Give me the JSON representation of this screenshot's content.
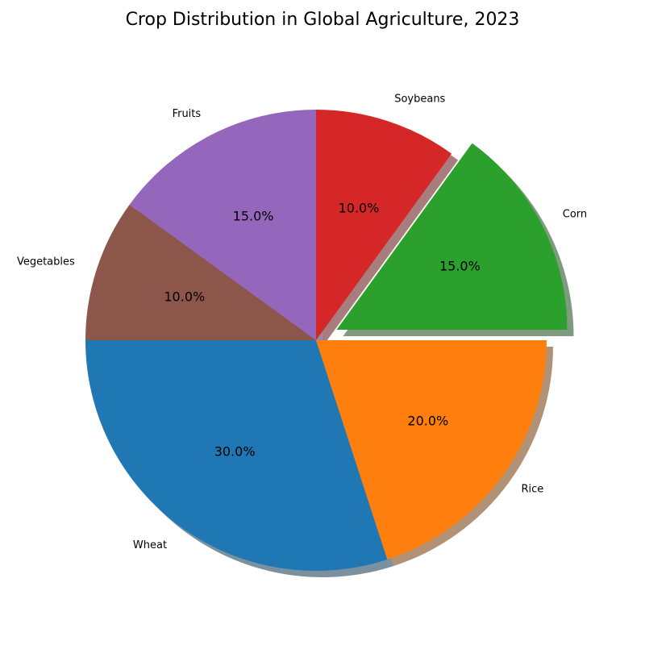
{
  "chart_data": {
    "type": "pie",
    "title": "Crop Distribution in Global Agriculture, 2023",
    "categories": [
      "Wheat",
      "Rice",
      "Corn",
      "Soybeans",
      "Fruits",
      "Vegetables"
    ],
    "values": [
      30,
      20,
      15,
      10,
      15,
      10
    ],
    "percent_labels": [
      "30.0%",
      "20.0%",
      "15.0%",
      "10.0%",
      "15.0%",
      "10.0%"
    ],
    "colors": [
      "#1f77b4",
      "#ff7f0e",
      "#2ca02c",
      "#d62728",
      "#9467bd",
      "#8c564b"
    ],
    "exploded": [
      "Corn"
    ],
    "shadow": true,
    "start_angle_deg": 180,
    "direction": "counterclockwise-from-left"
  }
}
